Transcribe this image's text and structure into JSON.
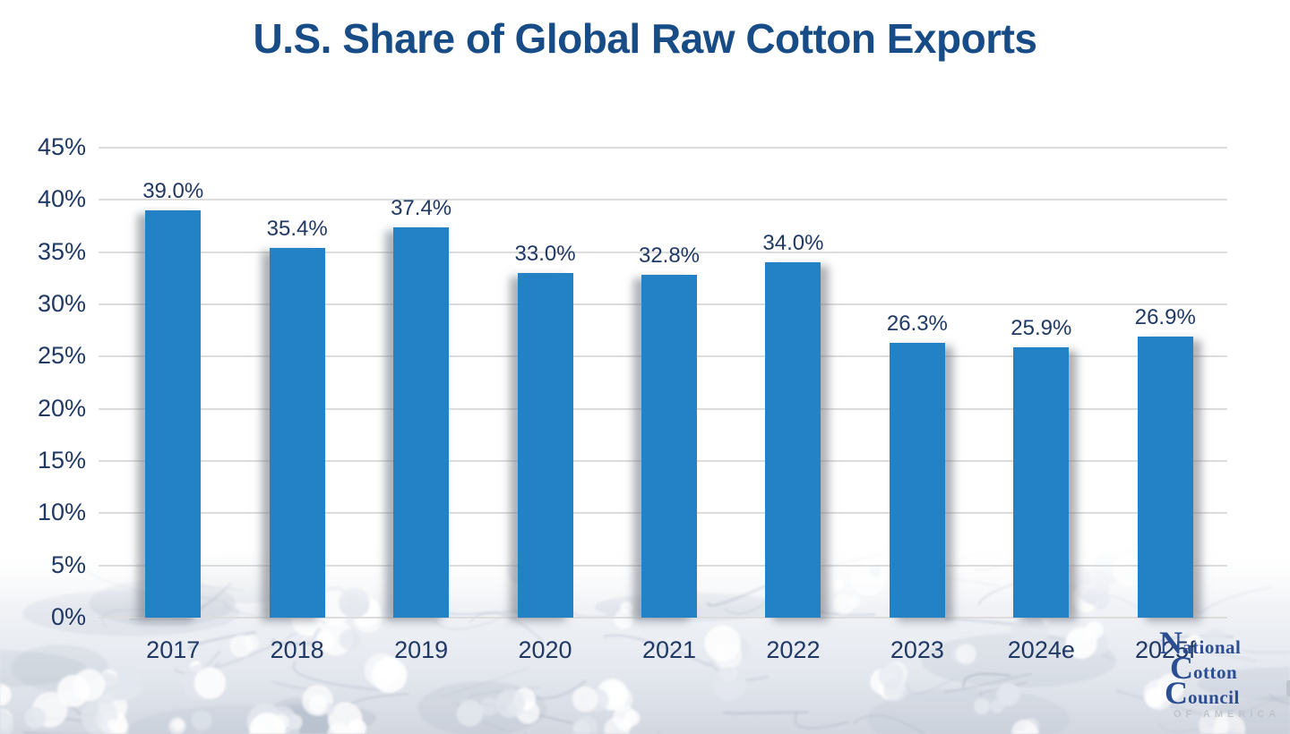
{
  "title": "U.S. Share of Global Raw Cotton Exports",
  "chart_data": {
    "type": "bar",
    "title": "U.S. Share of Global Raw Cotton Exports",
    "categories": [
      "2017",
      "2018",
      "2019",
      "2020",
      "2021",
      "2022",
      "2023",
      "2024e",
      "2025f"
    ],
    "values": [
      39.0,
      35.4,
      37.4,
      33.0,
      32.8,
      34.0,
      26.3,
      25.9,
      26.9
    ],
    "data_labels": [
      "39.0%",
      "35.4%",
      "37.4%",
      "33.0%",
      "32.8%",
      "34.0%",
      "26.3%",
      "25.9%",
      "26.9%"
    ],
    "xlabel": "",
    "ylabel": "",
    "ylim": [
      0,
      45
    ],
    "ytick_step": 5,
    "ytick_labels": [
      "0%",
      "5%",
      "10%",
      "15%",
      "20%",
      "25%",
      "30%",
      "35%",
      "40%",
      "45%"
    ],
    "grid": true,
    "legend": "none",
    "bar_color": "#2381C5"
  },
  "colors": {
    "title": "#174C87",
    "axis_text": "#1F3864",
    "gridline": "#DDDDDD",
    "bar": "#2381C5",
    "logo_blue": "#2B4E93",
    "logo_gray": "#BFC3CC"
  },
  "logo": {
    "line1": "National",
    "line2": "Cotton",
    "line3": "Council",
    "tagline": "OF AMERICA"
  }
}
